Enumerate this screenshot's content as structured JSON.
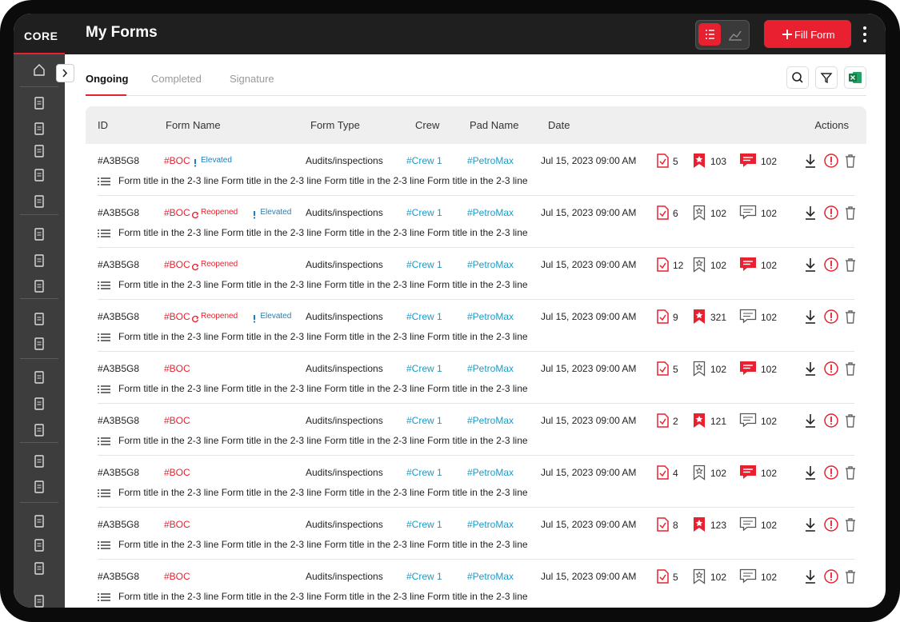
{
  "header": {
    "logo": "CORE",
    "title": "My Forms",
    "fill_button": "Fill Form"
  },
  "tabs": {
    "items": [
      "Ongoing",
      "Completed",
      "Signature"
    ],
    "active": 0
  },
  "table": {
    "columns": [
      "ID",
      "Form Name",
      "Form Type",
      "Crew",
      "Pad Name",
      "Date",
      "Actions"
    ],
    "rows": [
      {
        "id": "#A3B5G8",
        "form_name": "#BOC",
        "tags": [
          {
            "label": "Elevated",
            "icon": "alert",
            "color": "#1a7fc1"
          }
        ],
        "form_type": "Audits/inspections",
        "crew": "#Crew 1",
        "pad_name": "#PetroMax",
        "date": "Jul 15, 2023 09:00 AM",
        "checks": 5,
        "bookmarks": 103,
        "bookmarked": true,
        "comments": 102,
        "commented": true,
        "description": "Form title in the 2-3 line Form title in the 2-3 line Form title in the 2-3 line Form title in the 2-3 line"
      },
      {
        "id": "#A3B5G8",
        "form_name": "#BOC",
        "tags": [
          {
            "label": "Reopened",
            "icon": "refresh",
            "color": "#e8202f"
          },
          {
            "label": "Elevated",
            "icon": "alert",
            "color": "#1a7fc1"
          }
        ],
        "form_type": "Audits/inspections",
        "crew": "#Crew 1",
        "pad_name": "#PetroMax",
        "date": "Jul 15, 2023 09:00 AM",
        "checks": 6,
        "bookmarks": 102,
        "bookmarked": false,
        "comments": 102,
        "commented": false,
        "description": "Form title in the 2-3 line Form title in the 2-3 line Form title in the 2-3 line Form title in the 2-3 line"
      },
      {
        "id": "#A3B5G8",
        "form_name": "#BOC",
        "tags": [
          {
            "label": "Reopened",
            "icon": "refresh",
            "color": "#e8202f"
          }
        ],
        "form_type": "Audits/inspections",
        "crew": "#Crew 1",
        "pad_name": "#PetroMax",
        "date": "Jul 15, 2023 09:00 AM",
        "checks": 12,
        "bookmarks": 102,
        "bookmarked": false,
        "comments": 102,
        "commented": true,
        "description": "Form title in the 2-3 line Form title in the 2-3 line Form title in the 2-3 line Form title in the 2-3 line"
      },
      {
        "id": "#A3B5G8",
        "form_name": "#BOC",
        "tags": [
          {
            "label": "Reopened",
            "icon": "refresh",
            "color": "#e8202f"
          },
          {
            "label": "Elevated",
            "icon": "alert",
            "color": "#1a7fc1"
          }
        ],
        "form_type": "Audits/inspections",
        "crew": "#Crew 1",
        "pad_name": "#PetroMax",
        "date": "Jul 15, 2023 09:00 AM",
        "checks": 9,
        "bookmarks": 321,
        "bookmarked": true,
        "comments": 102,
        "commented": false,
        "description": "Form title in the 2-3 line Form title in the 2-3 line Form title in the 2-3 line Form title in the 2-3 line"
      },
      {
        "id": "#A3B5G8",
        "form_name": "#BOC",
        "tags": [],
        "form_type": "Audits/inspections",
        "crew": "#Crew 1",
        "pad_name": "#PetroMax",
        "date": "Jul 15, 2023 09:00 AM",
        "checks": 5,
        "bookmarks": 102,
        "bookmarked": false,
        "comments": 102,
        "commented": true,
        "description": "Form title in the 2-3 line Form title in the 2-3 line Form title in the 2-3 line Form title in the 2-3 line"
      },
      {
        "id": "#A3B5G8",
        "form_name": "#BOC",
        "tags": [],
        "form_type": "Audits/inspections",
        "crew": "#Crew 1",
        "pad_name": "#PetroMax",
        "date": "Jul 15, 2023 09:00 AM",
        "checks": 2,
        "bookmarks": 121,
        "bookmarked": true,
        "comments": 102,
        "commented": false,
        "description": "Form title in the 2-3 line Form title in the 2-3 line Form title in the 2-3 line Form title in the 2-3 line"
      },
      {
        "id": "#A3B5G8",
        "form_name": "#BOC",
        "tags": [],
        "form_type": "Audits/inspections",
        "crew": "#Crew 1",
        "pad_name": "#PetroMax",
        "date": "Jul 15, 2023 09:00 AM",
        "checks": 4,
        "bookmarks": 102,
        "bookmarked": false,
        "comments": 102,
        "commented": true,
        "description": "Form title in the 2-3 line Form title in the 2-3 line Form title in the 2-3 line Form title in the 2-3 line"
      },
      {
        "id": "#A3B5G8",
        "form_name": "#BOC",
        "tags": [],
        "form_type": "Audits/inspections",
        "crew": "#Crew 1",
        "pad_name": "#PetroMax",
        "date": "Jul 15, 2023 09:00 AM",
        "checks": 8,
        "bookmarks": 123,
        "bookmarked": true,
        "comments": 102,
        "commented": false,
        "description": "Form title in the 2-3 line Form title in the 2-3 line Form title in the 2-3 line Form title in the 2-3 line"
      },
      {
        "id": "#A3B5G8",
        "form_name": "#BOC",
        "tags": [],
        "form_type": "Audits/inspections",
        "crew": "#Crew 1",
        "pad_name": "#PetroMax",
        "date": "Jul 15, 2023 09:00 AM",
        "checks": 5,
        "bookmarks": 102,
        "bookmarked": false,
        "comments": 102,
        "commented": false,
        "description": "Form title in the 2-3 line Form title in the 2-3 line Form title in the 2-3 line Form title in the 2-3 line"
      }
    ]
  }
}
